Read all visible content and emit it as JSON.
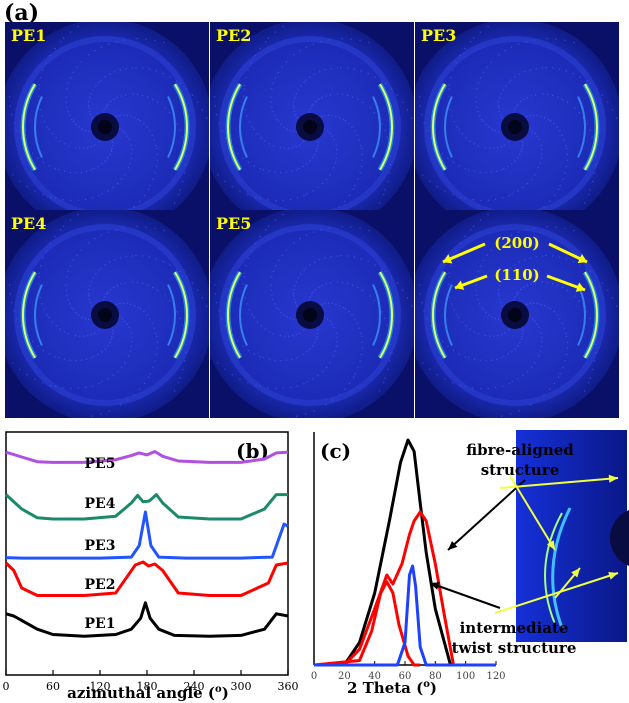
{
  "panel_a": {
    "label": "(a)",
    "images": [
      {
        "tag": "PE1"
      },
      {
        "tag": "PE2"
      },
      {
        "tag": "PE3"
      },
      {
        "tag": "PE4"
      },
      {
        "tag": "PE5"
      },
      {
        "tag": ""
      }
    ],
    "annotations": {
      "top": "(200)",
      "bottom": "(110)"
    }
  },
  "colors": {
    "pattern_bg": "#1a2cc8",
    "PE1": "#000000",
    "PE2": "#ff0000",
    "PE3": "#2255ff",
    "PE4": "#1a8a6a",
    "PE5": "#b050e0"
  },
  "chart_data": [
    {
      "type": "line",
      "panel": "(b)",
      "xlabel": "azimuthal angle (o)",
      "xlabel_text": "azimuthal angle (",
      "xlabel_sup": "o",
      "xlabel_tail": ")",
      "xlim": [
        0,
        360
      ],
      "xticks": [
        0,
        60,
        120,
        180,
        240,
        300,
        360
      ],
      "series": [
        {
          "name": "PE5",
          "x": [
            0,
            20,
            40,
            60,
            100,
            140,
            160,
            170,
            180,
            190,
            200,
            220,
            260,
            300,
            330,
            345,
            360
          ],
          "y": [
            0.7,
            0.56,
            0.42,
            0.4,
            0.4,
            0.48,
            0.6,
            0.68,
            0.62,
            0.72,
            0.58,
            0.44,
            0.4,
            0.4,
            0.5,
            0.68,
            0.7
          ]
        },
        {
          "name": "PE4",
          "x": [
            0,
            20,
            40,
            60,
            100,
            140,
            160,
            168,
            175,
            183,
            192,
            200,
            220,
            260,
            300,
            330,
            345,
            360
          ],
          "y": [
            0.66,
            0.3,
            0.08,
            0.05,
            0.05,
            0.12,
            0.45,
            0.64,
            0.48,
            0.5,
            0.66,
            0.45,
            0.1,
            0.05,
            0.05,
            0.3,
            0.66,
            0.66
          ]
        },
        {
          "name": "PE3",
          "x": [
            0,
            20,
            60,
            120,
            160,
            170,
            178,
            185,
            195,
            230,
            300,
            340,
            355,
            360
          ],
          "y": [
            0.05,
            0.04,
            0.04,
            0.04,
            0.06,
            0.3,
            1.0,
            0.3,
            0.06,
            0.04,
            0.04,
            0.06,
            0.75,
            0.7
          ]
        },
        {
          "name": "PE2",
          "x": [
            0,
            10,
            20,
            40,
            100,
            140,
            165,
            175,
            182,
            190,
            200,
            220,
            260,
            300,
            335,
            345,
            360
          ],
          "y": [
            0.7,
            0.55,
            0.2,
            0.05,
            0.05,
            0.1,
            0.66,
            0.72,
            0.64,
            0.68,
            0.55,
            0.1,
            0.05,
            0.05,
            0.3,
            0.66,
            0.7
          ]
        },
        {
          "name": "PE1",
          "x": [
            0,
            10,
            20,
            40,
            60,
            100,
            140,
            160,
            172,
            178,
            184,
            195,
            215,
            260,
            300,
            330,
            345,
            360
          ],
          "y": [
            0.55,
            0.5,
            0.4,
            0.2,
            0.08,
            0.04,
            0.08,
            0.2,
            0.45,
            0.8,
            0.45,
            0.2,
            0.06,
            0.04,
            0.06,
            0.2,
            0.55,
            0.5
          ]
        }
      ]
    },
    {
      "type": "line",
      "panel": "(c)",
      "xlabel": "2 Theta (o)",
      "xlabel_text": "2 Theta (",
      "xlabel_sup": "o",
      "xlabel_tail": ")",
      "xlim": [
        0,
        120
      ],
      "xticks": [
        0,
        20,
        40,
        60,
        80,
        100,
        120
      ],
      "annotations": [
        "fibre-aligned structure",
        "intermediate twist structure"
      ],
      "series": [
        {
          "color": "black",
          "x": [
            0,
            20,
            30,
            40,
            50,
            57,
            62,
            66,
            70,
            74,
            80,
            90
          ],
          "y": [
            0.0,
            0.0,
            0.1,
            0.32,
            0.65,
            0.9,
            1.0,
            0.95,
            0.72,
            0.5,
            0.25,
            0.0
          ]
        },
        {
          "color": "red",
          "x": [
            0,
            20,
            30,
            40,
            48,
            52,
            58,
            63,
            66,
            70,
            74,
            80,
            86,
            92
          ],
          "y": [
            0.0,
            0.0,
            0.07,
            0.25,
            0.4,
            0.36,
            0.45,
            0.58,
            0.64,
            0.68,
            0.64,
            0.45,
            0.22,
            0.0
          ]
        },
        {
          "color": "red",
          "x": [
            0,
            30,
            38,
            44,
            48,
            52,
            56,
            62,
            66,
            70
          ],
          "y": [
            0.0,
            0.02,
            0.15,
            0.32,
            0.37,
            0.32,
            0.18,
            0.04,
            0.0,
            0.0
          ]
        },
        {
          "color": "blue",
          "x": [
            0,
            55,
            60,
            63,
            65,
            67,
            70,
            74,
            120
          ],
          "y": [
            0.0,
            0.0,
            0.1,
            0.4,
            0.44,
            0.35,
            0.08,
            0.0,
            0.0
          ]
        }
      ]
    }
  ]
}
